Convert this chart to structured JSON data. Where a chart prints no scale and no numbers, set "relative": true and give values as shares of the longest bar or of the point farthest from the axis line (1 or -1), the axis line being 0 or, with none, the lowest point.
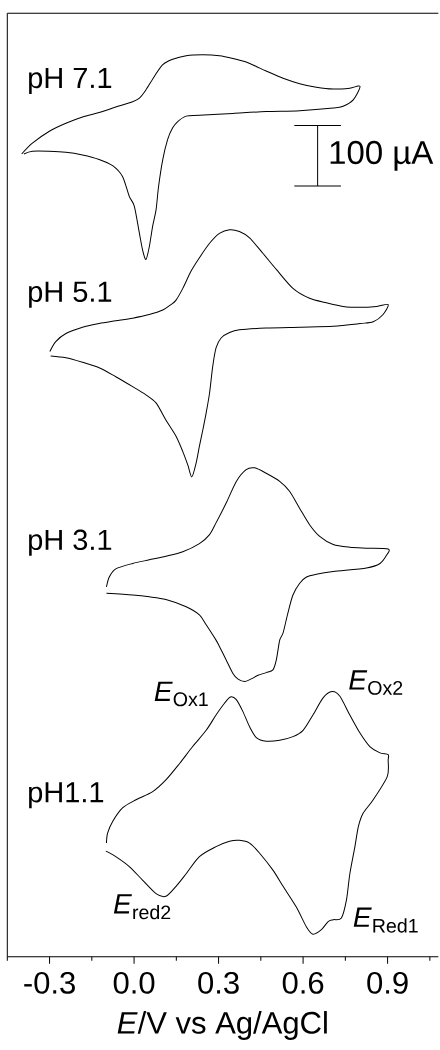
{
  "chart_data": {
    "type": "line",
    "relative": true,
    "xlabel": "*E*/V vs Ag/AgCl",
    "xlim": [
      -0.45,
      1.08
    ],
    "xticks": [
      {
        "value": -0.45,
        "label": null
      },
      -0.3,
      {
        "value": -0.15,
        "label": null
      },
      {
        "value": 0,
        "label": "0.0"
      },
      {
        "value": 0.15,
        "label": null
      },
      0.3,
      {
        "value": 0.45,
        "label": null
      },
      0.6,
      {
        "value": 0.75,
        "label": null
      },
      0.9,
      {
        "value": 1.05,
        "label": null
      }
    ],
    "annotations": [
      "100 µA",
      {
        "text": "*E*$_{Ox1}$",
        "x": 0.342,
        "y": 0.288
      },
      {
        "text": "*E*$_{Ox2}$",
        "x": 0.703,
        "y": 0.294
      },
      {
        "text": "*E*$_{red2}$",
        "x": 0.113,
        "y": 0.067
      },
      {
        "text": "*E*$_{Red1}$",
        "x": 0.635,
        "y": 0.025
      }
    ],
    "series": [
      {
        "name": "pH 7.1",
        "color": "#000000",
        "x": [
          -0.399,
          -0.361,
          -0.302,
          -0.242,
          -0.183,
          -0.124,
          -0.065,
          -0.005,
          0.019,
          0.042,
          0.072,
          0.102,
          0.137,
          0.185,
          0.244,
          0.303,
          0.351,
          0.398,
          0.434,
          0.469,
          0.529,
          0.588,
          0.647,
          0.707,
          0.766,
          0.802,
          0.778,
          0.742,
          0.707,
          0.588,
          0.469,
          0.351,
          0.232,
          0.185,
          0.155,
          0.137,
          0.119,
          0.102,
          0.087,
          0.078,
          0.066,
          0.054,
          0.042,
          0.03,
          0.019,
          0.001,
          -0.017,
          -0.041,
          -0.076,
          -0.124,
          -0.183,
          -0.242,
          -0.302,
          -0.361,
          -0.391
        ],
        "values": [
          0.89,
          0.902,
          0.915,
          0.924,
          0.931,
          0.936,
          0.942,
          0.948,
          0.952,
          0.961,
          0.976,
          0.989,
          0.995,
          0.999,
          1.0,
          0.999,
          0.996,
          0.992,
          0.987,
          0.982,
          0.974,
          0.968,
          0.964,
          0.962,
          0.963,
          0.965,
          0.95,
          0.943,
          0.941,
          0.938,
          0.937,
          0.935,
          0.933,
          0.932,
          0.926,
          0.919,
          0.906,
          0.884,
          0.854,
          0.828,
          0.81,
          0.787,
          0.773,
          0.784,
          0.802,
          0.832,
          0.843,
          0.865,
          0.877,
          0.884,
          0.889,
          0.892,
          0.893,
          0.893,
          0.89
        ]
      },
      {
        "name": "pH 5.1",
        "color": "#000000",
        "x": [
          -0.299,
          -0.278,
          -0.242,
          -0.183,
          -0.124,
          -0.065,
          -0.005,
          0.054,
          0.102,
          0.131,
          0.149,
          0.173,
          0.202,
          0.232,
          0.268,
          0.303,
          0.339,
          0.374,
          0.41,
          0.457,
          0.505,
          0.564,
          0.623,
          0.683,
          0.742,
          0.802,
          0.861,
          0.902,
          0.884,
          0.849,
          0.802,
          0.707,
          0.588,
          0.469,
          0.374,
          0.339,
          0.309,
          0.291,
          0.279,
          0.268,
          0.256,
          0.244,
          0.232,
          0.22,
          0.205,
          0.191,
          0.173,
          0.149,
          0.113,
          0.078,
          0.042,
          -0.005,
          -0.065,
          -0.124,
          -0.183,
          -0.242,
          -0.296
        ],
        "values": [
          0.671,
          0.682,
          0.691,
          0.698,
          0.702,
          0.705,
          0.708,
          0.712,
          0.717,
          0.723,
          0.728,
          0.741,
          0.76,
          0.775,
          0.791,
          0.802,
          0.806,
          0.804,
          0.797,
          0.78,
          0.762,
          0.741,
          0.73,
          0.725,
          0.721,
          0.72,
          0.721,
          0.723,
          0.712,
          0.704,
          0.702,
          0.699,
          0.698,
          0.697,
          0.695,
          0.692,
          0.686,
          0.675,
          0.654,
          0.625,
          0.603,
          0.584,
          0.566,
          0.547,
          0.532,
          0.545,
          0.56,
          0.577,
          0.595,
          0.614,
          0.623,
          0.632,
          0.643,
          0.653,
          0.659,
          0.664,
          0.666
        ]
      },
      {
        "name": "pH 3.1",
        "color": "#000000",
        "x": [
          -0.098,
          -0.088,
          -0.065,
          -0.005,
          0.054,
          0.113,
          0.173,
          0.232,
          0.268,
          0.291,
          0.327,
          0.363,
          0.398,
          0.428,
          0.469,
          0.517,
          0.552,
          0.588,
          0.623,
          0.659,
          0.707,
          0.766,
          0.825,
          0.902,
          0.896,
          0.873,
          0.825,
          0.707,
          0.647,
          0.612,
          0.588,
          0.564,
          0.546,
          0.529,
          0.517,
          0.505,
          0.493,
          0.469,
          0.44,
          0.416,
          0.392,
          0.368,
          0.351,
          0.327,
          0.303,
          0.291,
          0.256,
          0.232,
          0.185,
          0.113,
          0.054,
          -0.005,
          -0.098
        ],
        "values": [
          0.41,
          0.421,
          0.43,
          0.436,
          0.44,
          0.444,
          0.449,
          0.458,
          0.468,
          0.481,
          0.503,
          0.527,
          0.54,
          0.542,
          0.536,
          0.527,
          0.516,
          0.497,
          0.479,
          0.466,
          0.457,
          0.454,
          0.453,
          0.452,
          0.445,
          0.436,
          0.431,
          0.427,
          0.424,
          0.421,
          0.414,
          0.401,
          0.381,
          0.359,
          0.351,
          0.329,
          0.318,
          0.315,
          0.312,
          0.308,
          0.305,
          0.308,
          0.314,
          0.329,
          0.344,
          0.351,
          0.368,
          0.379,
          0.388,
          0.396,
          0.399,
          0.401,
          0.403
        ]
      },
      {
        "name": "pH1.1",
        "color": "#000000",
        "x": [
          -0.098,
          -0.094,
          -0.076,
          -0.041,
          0.007,
          0.066,
          0.113,
          0.161,
          0.208,
          0.256,
          0.291,
          0.321,
          0.342,
          0.363,
          0.386,
          0.41,
          0.434,
          0.469,
          0.517,
          0.564,
          0.6,
          0.635,
          0.671,
          0.703,
          0.73,
          0.766,
          0.802,
          0.837,
          0.873,
          0.902,
          0.902,
          0.899,
          0.849,
          0.813,
          0.796,
          0.784,
          0.766,
          0.754,
          0.736,
          0.707,
          0.689,
          0.665,
          0.635,
          0.612,
          0.576,
          0.529,
          0.493,
          0.445,
          0.41,
          0.374,
          0.339,
          0.291,
          0.232,
          0.185,
          0.149,
          0.113,
          0.078,
          0.03,
          -0.017,
          -0.065,
          -0.1
        ],
        "values": [
          0.126,
          0.137,
          0.15,
          0.165,
          0.174,
          0.183,
          0.196,
          0.214,
          0.233,
          0.251,
          0.268,
          0.281,
          0.288,
          0.285,
          0.272,
          0.255,
          0.243,
          0.239,
          0.24,
          0.244,
          0.251,
          0.268,
          0.287,
          0.294,
          0.289,
          0.268,
          0.248,
          0.233,
          0.226,
          0.224,
          0.218,
          0.2,
          0.174,
          0.159,
          0.144,
          0.122,
          0.092,
          0.063,
          0.043,
          0.041,
          0.039,
          0.03,
          0.025,
          0.033,
          0.055,
          0.078,
          0.096,
          0.115,
          0.126,
          0.129,
          0.128,
          0.122,
          0.111,
          0.092,
          0.078,
          0.067,
          0.07,
          0.085,
          0.1,
          0.111,
          0.117
        ]
      }
    ]
  }
}
